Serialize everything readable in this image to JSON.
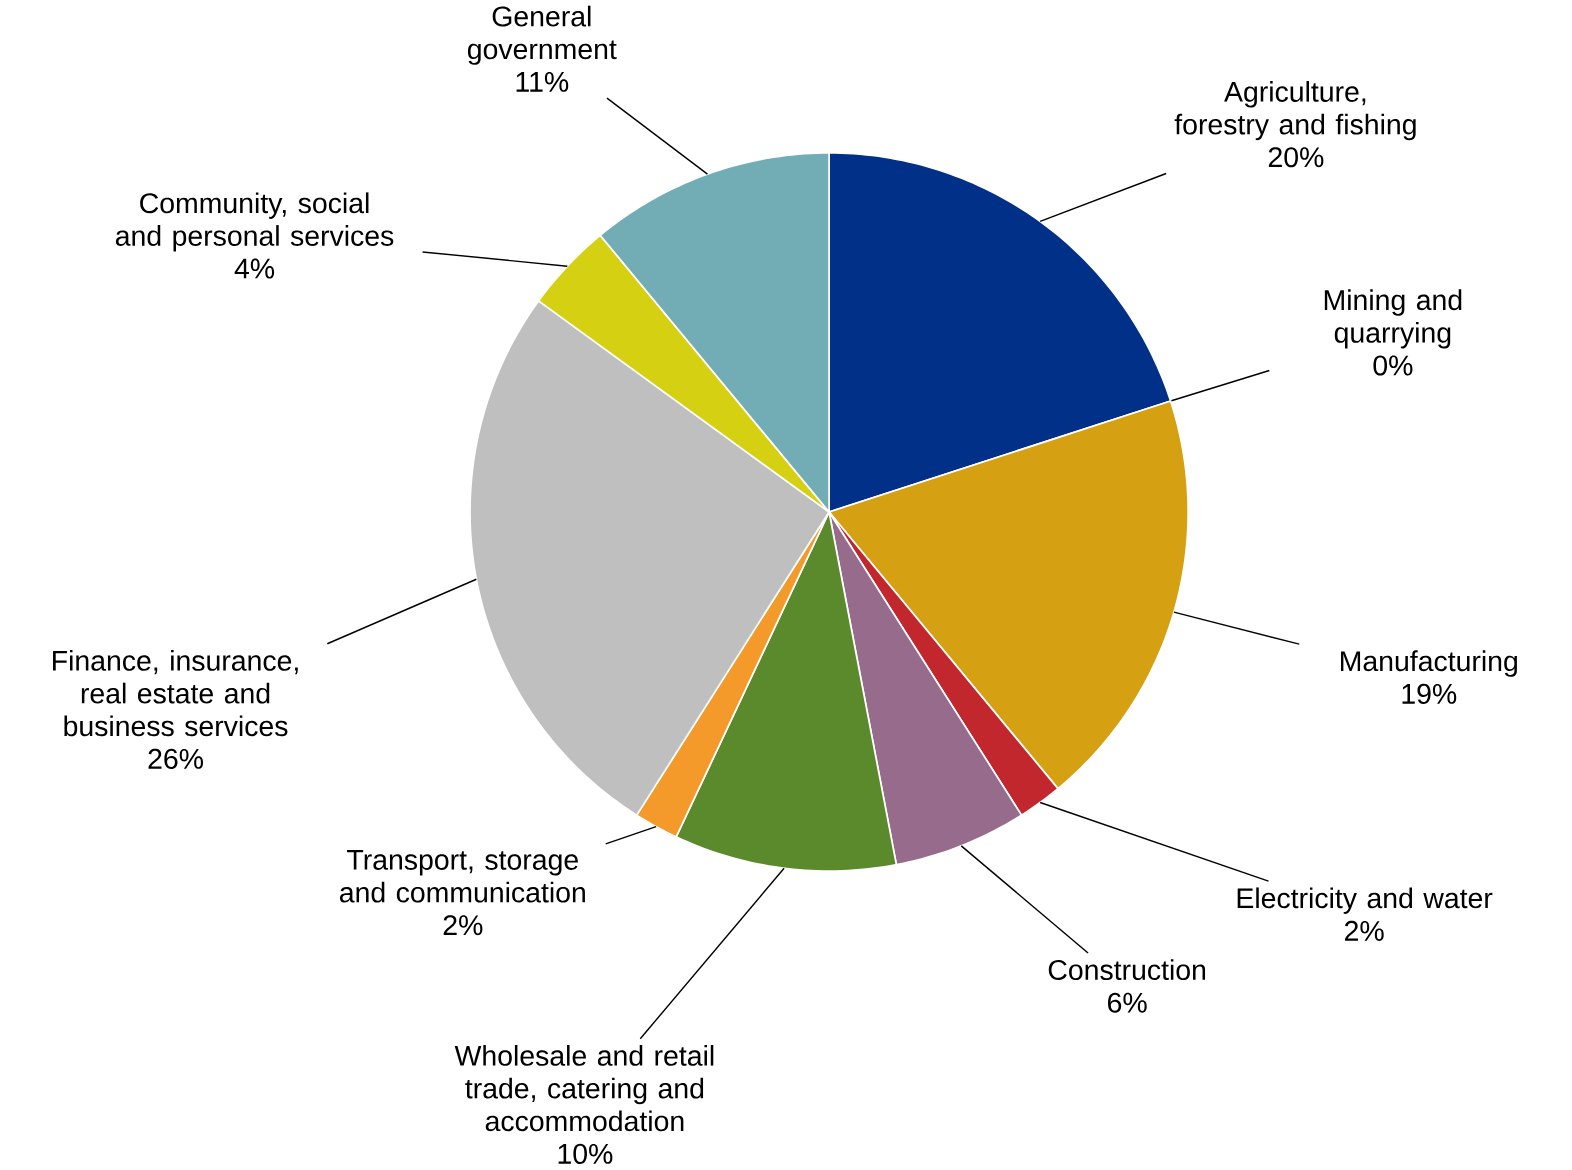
{
  "chart_data": {
    "type": "pie",
    "categories": [
      "Agriculture, forestry and fishing",
      "Mining and quarrying",
      "Manufacturing",
      "Electricity and water",
      "Construction",
      "Wholesale and retail trade, catering and accommodation",
      "Transport, storage and communication",
      "Finance, insurance, real estate and business services",
      "Community, social and personal services",
      "General government"
    ],
    "values": [
      20,
      0,
      19,
      2,
      6,
      10,
      2,
      26,
      4,
      11
    ],
    "value_labels": [
      "20%",
      "0%",
      "19%",
      "2%",
      "6%",
      "10%",
      "2%",
      "26%",
      "4%",
      "11%"
    ],
    "colors": [
      "#003087",
      "#7f7f7f",
      "#d6a013",
      "#c1272d",
      "#976b8c",
      "#5b8a2c",
      "#f39a2b",
      "#bfbfbf",
      "#d6d013",
      "#72adb6"
    ]
  }
}
